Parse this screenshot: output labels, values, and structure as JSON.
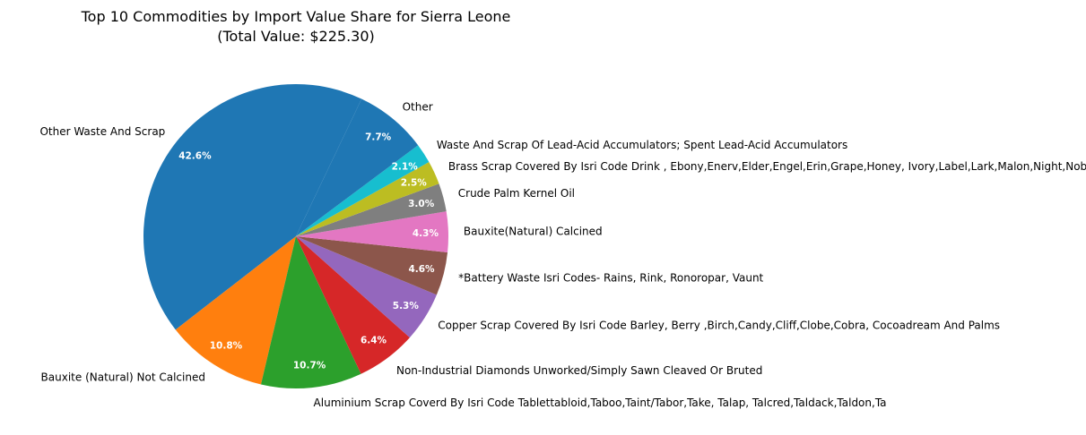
{
  "chart_data": {
    "type": "pie",
    "title": "Top 10 Commodities by Import Value Share for Sierra Leone",
    "subtitle": "(Total Value: $225.30)",
    "slices": [
      {
        "label": "Other Waste And Scrap",
        "value": 42.6,
        "color": "#1f77b4",
        "pct_text": "42.6%"
      },
      {
        "label": "Bauxite (Natural) Not Calcined",
        "value": 10.8,
        "color": "#ff7f0e",
        "pct_text": "10.8%"
      },
      {
        "label": "Aluminium Scrap Coverd By Isri Code Tablettabloid,Taboo,Taint/Tabor,Take, Talap, Talcred,Taldack,Taldon,Ta",
        "value": 10.7,
        "color": "#2ca02c",
        "pct_text": "10.7%"
      },
      {
        "label": "Non-Industrial Diamonds Unworked/Simply Sawn Cleaved Or Bruted",
        "value": 6.4,
        "color": "#d62728",
        "pct_text": "6.4%"
      },
      {
        "label": "Copper Scrap Covered By Isri Code Barley, Berry ,Birch,Candy,Cliff,Clobe,Cobra, Cocoadream And Palms",
        "value": 5.3,
        "color": "#9467bd",
        "pct_text": "5.3%"
      },
      {
        "label": "*Battery Waste Isri Codes- Rains, Rink, Ronoropar, Vaunt",
        "value": 4.6,
        "color": "#8c564b",
        "pct_text": "4.6%"
      },
      {
        "label": "Bauxite(Natural) Calcined",
        "value": 4.3,
        "color": "#e377c2",
        "pct_text": "4.3%"
      },
      {
        "label": "Crude Palm Kernel Oil",
        "value": 3.0,
        "color": "#7f7f7f",
        "pct_text": "3.0%"
      },
      {
        "label": "Brass Scrap Covered By Isri Code Drink , Ebony,Enerv,Elder,Engel,Erin,Grape,Honey, Ivory,Label,Lark,Malon,Night,Noble,",
        "value": 2.5,
        "color": "#bcbd22",
        "pct_text": "2.5%"
      },
      {
        "label": "Waste And Scrap Of Lead-Acid Accumulators; Spent Lead-Acid Accumulators",
        "value": 2.1,
        "color": "#17becf",
        "pct_text": "2.1%"
      },
      {
        "label": "Other",
        "value": 7.7,
        "color": "#1f77b4",
        "pct_text": "7.7%"
      }
    ]
  }
}
